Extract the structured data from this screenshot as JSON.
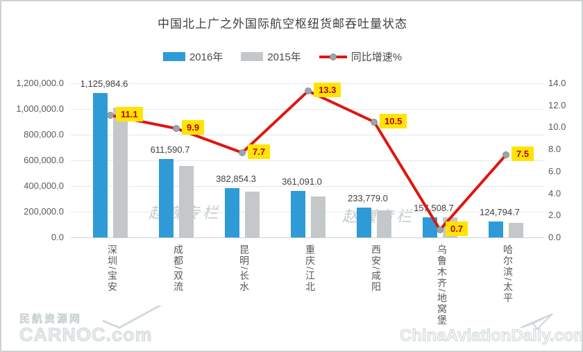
{
  "title": "中国北上广之外国际航空枢纽货邮吞吐量状态",
  "legend": {
    "items": [
      {
        "label": "2016年"
      },
      {
        "label": "2015年"
      },
      {
        "label": "同比增速%"
      }
    ]
  },
  "colors": {
    "bar_2016": "#2e9bd6",
    "bar_2015": "#c4c8ca",
    "growth_line": "#e0150f",
    "growth_label_bg": "#ffe404",
    "growth_label_text": "#bf0000",
    "marker": "#9ea5a8"
  },
  "chart_data": {
    "type": "bar+line",
    "title": "中国北上广之外国际航空枢纽货邮吞吐量状态",
    "categories": [
      "深圳/宝安",
      "成都/双流",
      "昆明/长水",
      "重庆/江北",
      "西安/咸阳",
      "乌鲁木齐/地窝堡",
      "哈尔滨/太平"
    ],
    "series": [
      {
        "name": "2016年",
        "type": "bar",
        "axis": "left",
        "values": [
          1125984.6,
          611590.7,
          382854.3,
          361091.0,
          233779.0,
          157508.7,
          124794.7
        ],
        "data_labels": [
          "1,125,984.6",
          "611,590.7",
          "382,854.3",
          "361,091.0",
          "233,779.0",
          "157,508.7",
          "124,794.7"
        ]
      },
      {
        "name": "2015年",
        "type": "bar",
        "axis": "left",
        "values_estimated_from_growth": [
          1013487,
          556497,
          355482,
          318704,
          211565,
          156414,
          116088
        ]
      },
      {
        "name": "同比增速%",
        "type": "line",
        "axis": "right",
        "values": [
          11.1,
          9.9,
          7.7,
          13.3,
          10.5,
          0.7,
          7.5
        ],
        "data_labels": [
          "11.1",
          "9.9",
          "7.7",
          "13.3",
          "10.5",
          "0.7",
          "7.5"
        ]
      }
    ],
    "left_axis": {
      "min": 0,
      "max": 1200000,
      "step": 200000,
      "tick_labels": [
        "1,200,000.0",
        "1,000,000.0",
        "800,000.0",
        "600,000.0",
        "400,000.0",
        "200,000.0",
        "0.0"
      ]
    },
    "right_axis": {
      "min": 0,
      "max": 14,
      "step": 2,
      "tick_labels": [
        "14.0",
        "12.0",
        "10.0",
        "8.0",
        "6.0",
        "4.0",
        "2.0",
        "0.0"
      ]
    },
    "grid": true,
    "legend_position": "top"
  },
  "watermarks": {
    "column1": "赵巍专栏",
    "column2": "赵巍专栏",
    "carnoc_cn": "民航资源网",
    "carnoc_en": "CARNOC.com",
    "cad": "ChinaAviationDaily.com"
  }
}
